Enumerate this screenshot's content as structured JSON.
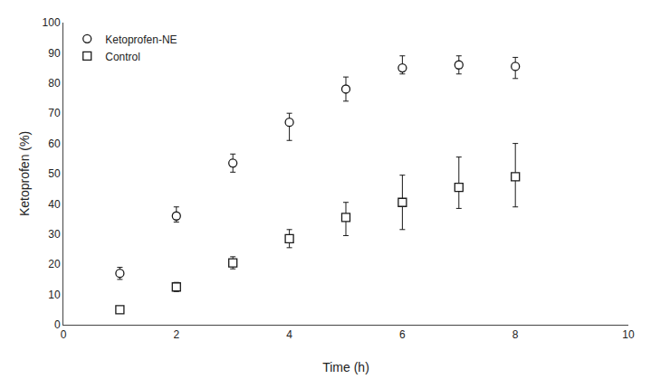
{
  "chart_data": {
    "type": "scatter",
    "x": [
      1,
      2,
      3,
      4,
      5,
      6,
      7,
      8
    ],
    "xlabel": "Time (h)",
    "ylabel": "Ketoprofen (%)",
    "xlim": [
      0,
      10
    ],
    "ylim": [
      0,
      100
    ],
    "xticks": [
      0,
      2,
      4,
      6,
      8,
      10
    ],
    "yticks": [
      0,
      10,
      20,
      30,
      40,
      50,
      60,
      70,
      80,
      90,
      100
    ],
    "grid": false,
    "legend": "upper left",
    "series": [
      {
        "name": "Ketoprofen-NE",
        "color": "#1a1a1a",
        "marker": "circle",
        "values": [
          17,
          36,
          53.5,
          67,
          78,
          85,
          86,
          85.5
        ],
        "error_upper": [
          2,
          3,
          3,
          3,
          4,
          4,
          3,
          3
        ],
        "error_lower": [
          2,
          2,
          3,
          6,
          4,
          2,
          3,
          4
        ]
      },
      {
        "name": "Control",
        "color": "#1a1a1a",
        "marker": "square",
        "values": [
          5,
          12.5,
          20.5,
          28.5,
          35.5,
          40.5,
          45.5,
          49
        ],
        "error_upper": [
          1,
          1.5,
          2,
          3,
          5,
          9,
          10,
          11
        ],
        "error_lower": [
          1,
          1.5,
          2,
          3,
          6,
          9,
          7,
          10
        ]
      }
    ]
  }
}
